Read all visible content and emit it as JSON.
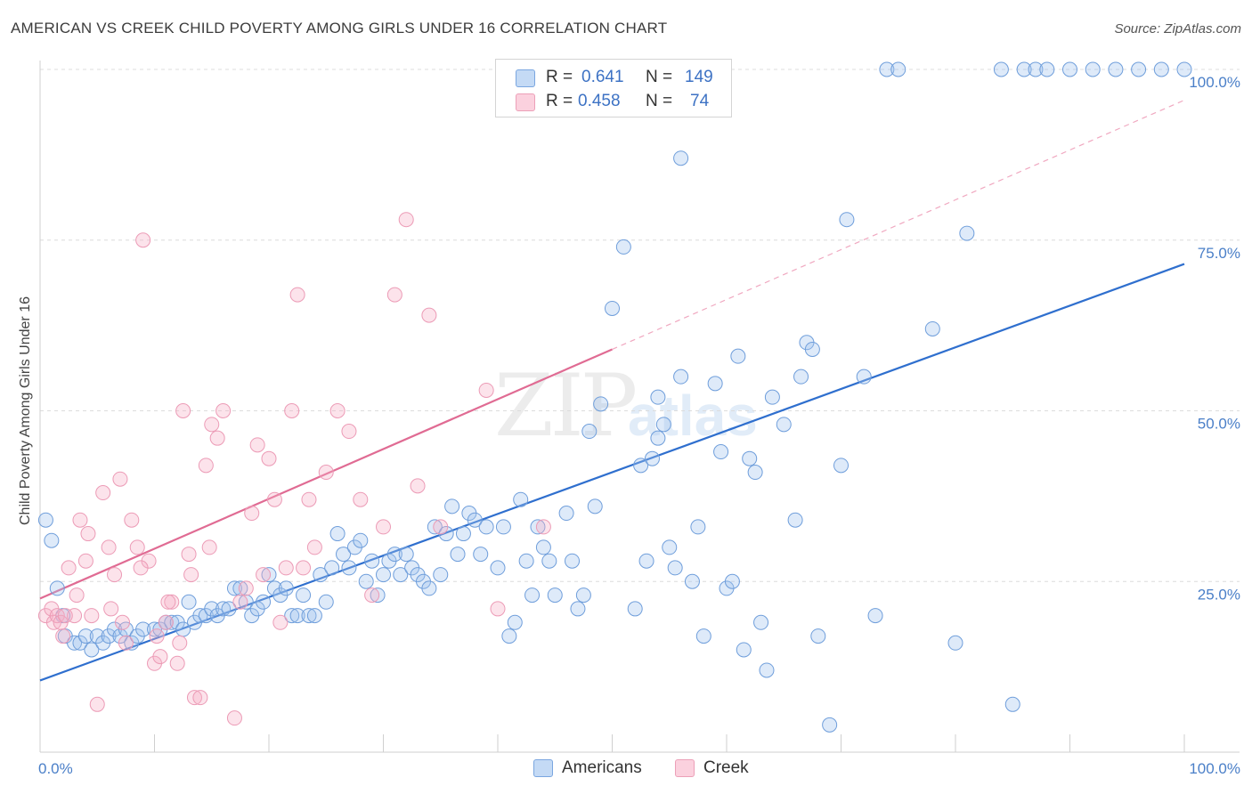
{
  "title": "AMERICAN VS CREEK CHILD POVERTY AMONG GIRLS UNDER 16 CORRELATION CHART",
  "source": "Source: ZipAtlas.com",
  "watermark": {
    "zip": "ZIP",
    "atlas": "atlas"
  },
  "legend": {
    "rows": [
      {
        "r_label": "R =",
        "r_value": "0.641",
        "n_label": "N =",
        "n_value": "149",
        "color": "#a9c8f0",
        "border": "#6b9bd8"
      },
      {
        "r_label": "R =",
        "r_value": "0.458",
        "n_label": "N =",
        "n_value": "74",
        "color": "#f7bfd0",
        "border": "#e68aa8"
      }
    ]
  },
  "bottom_legend": [
    {
      "label": "Americans",
      "color": "#a9c8f0",
      "border": "#6b9bd8"
    },
    {
      "label": "Creek",
      "color": "#f7bfd0",
      "border": "#e68aa8"
    }
  ],
  "chart_data": {
    "type": "scatter",
    "title": "AMERICAN VS CREEK CHILD POVERTY AMONG GIRLS UNDER 16 CORRELATION CHART",
    "xlabel": "",
    "ylabel": "Child Poverty Among Girls Under 16",
    "xlim": [
      0,
      100
    ],
    "ylim": [
      0,
      100
    ],
    "x_tick_labels": [
      "0.0%",
      "100.0%"
    ],
    "y_tick_labels": [
      "25.0%",
      "50.0%",
      "75.0%",
      "100.0%"
    ],
    "y_ticks": [
      25,
      50,
      75,
      100
    ],
    "legend_position": "top-center",
    "series": [
      {
        "name": "Americans",
        "color": "#7aa6e0",
        "trend": {
          "x0": 0,
          "y0": 10.5,
          "x1": 100,
          "y1": 71.5,
          "style": "solid",
          "color": "#2f6fce"
        },
        "points": [
          [
            0.5,
            34
          ],
          [
            1,
            31
          ],
          [
            1.5,
            24
          ],
          [
            2,
            20
          ],
          [
            2.2,
            17
          ],
          [
            3,
            16
          ],
          [
            3.5,
            16
          ],
          [
            4,
            17
          ],
          [
            4.5,
            15
          ],
          [
            5,
            17
          ],
          [
            5.5,
            16
          ],
          [
            6,
            17
          ],
          [
            6.5,
            18
          ],
          [
            7,
            17
          ],
          [
            7.5,
            18
          ],
          [
            8,
            16
          ],
          [
            8.5,
            17
          ],
          [
            9,
            18
          ],
          [
            10,
            18
          ],
          [
            10.5,
            18
          ],
          [
            11,
            19
          ],
          [
            11.5,
            19
          ],
          [
            12,
            19
          ],
          [
            12.5,
            18
          ],
          [
            13,
            22
          ],
          [
            13.5,
            19
          ],
          [
            14,
            20
          ],
          [
            14.5,
            20
          ],
          [
            15,
            21
          ],
          [
            15.5,
            20
          ],
          [
            16,
            21
          ],
          [
            16.5,
            21
          ],
          [
            17,
            24
          ],
          [
            17.5,
            24
          ],
          [
            18,
            22
          ],
          [
            18.5,
            20
          ],
          [
            19,
            21
          ],
          [
            19.5,
            22
          ],
          [
            20,
            26
          ],
          [
            20.5,
            24
          ],
          [
            21,
            23
          ],
          [
            21.5,
            24
          ],
          [
            22,
            20
          ],
          [
            22.5,
            20
          ],
          [
            23,
            23
          ],
          [
            23.5,
            20
          ],
          [
            24,
            20
          ],
          [
            24.5,
            26
          ],
          [
            25,
            22
          ],
          [
            25.5,
            27
          ],
          [
            26,
            32
          ],
          [
            26.5,
            29
          ],
          [
            27,
            27
          ],
          [
            27.5,
            30
          ],
          [
            28,
            31
          ],
          [
            28.5,
            25
          ],
          [
            29,
            28
          ],
          [
            29.5,
            23
          ],
          [
            30,
            26
          ],
          [
            30.5,
            28
          ],
          [
            31,
            29
          ],
          [
            31.5,
            26
          ],
          [
            32,
            29
          ],
          [
            32.5,
            27
          ],
          [
            33,
            26
          ],
          [
            33.5,
            25
          ],
          [
            34,
            24
          ],
          [
            34.5,
            33
          ],
          [
            35,
            26
          ],
          [
            35.5,
            32
          ],
          [
            36,
            36
          ],
          [
            36.5,
            29
          ],
          [
            37,
            32
          ],
          [
            37.5,
            35
          ],
          [
            38,
            34
          ],
          [
            38.5,
            29
          ],
          [
            39,
            33
          ],
          [
            40,
            27
          ],
          [
            40.5,
            33
          ],
          [
            41,
            17
          ],
          [
            41.5,
            19
          ],
          [
            42,
            37
          ],
          [
            42.5,
            28
          ],
          [
            43,
            23
          ],
          [
            43.5,
            33
          ],
          [
            44,
            30
          ],
          [
            44.5,
            28
          ],
          [
            45,
            23
          ],
          [
            46,
            35
          ],
          [
            46.5,
            28
          ],
          [
            47,
            21
          ],
          [
            47.5,
            23
          ],
          [
            48,
            47
          ],
          [
            48.5,
            36
          ],
          [
            49,
            51
          ],
          [
            50,
            65
          ],
          [
            51,
            74
          ],
          [
            52,
            21
          ],
          [
            52.5,
            42
          ],
          [
            53,
            28
          ],
          [
            53.5,
            43
          ],
          [
            54,
            46
          ],
          [
            54.5,
            48
          ],
          [
            55,
            30
          ],
          [
            55.5,
            27
          ],
          [
            56,
            55
          ],
          [
            57,
            25
          ],
          [
            57.5,
            33
          ],
          [
            58,
            17
          ],
          [
            59,
            54
          ],
          [
            59.5,
            44
          ],
          [
            60,
            24
          ],
          [
            60.5,
            25
          ],
          [
            61,
            58
          ],
          [
            61.5,
            15
          ],
          [
            62,
            43
          ],
          [
            62.5,
            41
          ],
          [
            63,
            19
          ],
          [
            63.5,
            12
          ],
          [
            64,
            52
          ],
          [
            65,
            48
          ],
          [
            66,
            34
          ],
          [
            66.5,
            55
          ],
          [
            67,
            60
          ],
          [
            67.5,
            59
          ],
          [
            68,
            17
          ],
          [
            69,
            4
          ],
          [
            70,
            42
          ],
          [
            70.5,
            78
          ],
          [
            72,
            55
          ],
          [
            73,
            20
          ],
          [
            74,
            100
          ],
          [
            75,
            100
          ],
          [
            78,
            62
          ],
          [
            80,
            16
          ],
          [
            81,
            76
          ],
          [
            84,
            100
          ],
          [
            85,
            7
          ],
          [
            86,
            100
          ],
          [
            87,
            100
          ],
          [
            88,
            100
          ],
          [
            90,
            100
          ],
          [
            92,
            100
          ],
          [
            94,
            100
          ],
          [
            96,
            100
          ],
          [
            98,
            100
          ],
          [
            100,
            100
          ],
          [
            54,
            52
          ],
          [
            56,
            87
          ]
        ]
      },
      {
        "name": "Creek",
        "color": "#f2a6bf",
        "trend": {
          "x0": 0,
          "y0": 22.5,
          "x1": 50,
          "y1": 59,
          "style": "solid",
          "color": "#e06b93"
        },
        "trend_extension": {
          "x0": 50,
          "y0": 59,
          "x1": 100,
          "y1": 95.5,
          "style": "dashed",
          "color": "#f0a8c0"
        },
        "points": [
          [
            0.5,
            20
          ],
          [
            1,
            21
          ],
          [
            1.2,
            19
          ],
          [
            1.5,
            20
          ],
          [
            2,
            17
          ],
          [
            2.5,
            27
          ],
          [
            3,
            20
          ],
          [
            3.5,
            34
          ],
          [
            4,
            28
          ],
          [
            4.5,
            20
          ],
          [
            5,
            7
          ],
          [
            5.5,
            38
          ],
          [
            6,
            30
          ],
          [
            6.5,
            26
          ],
          [
            7,
            40
          ],
          [
            7.5,
            16
          ],
          [
            8,
            34
          ],
          [
            8.5,
            30
          ],
          [
            9,
            75
          ],
          [
            9.5,
            28
          ],
          [
            10,
            13
          ],
          [
            10.5,
            14
          ],
          [
            11,
            19
          ],
          [
            11.5,
            22
          ],
          [
            12,
            13
          ],
          [
            12.5,
            50
          ],
          [
            13,
            29
          ],
          [
            13.5,
            8
          ],
          [
            14,
            8
          ],
          [
            14.5,
            42
          ],
          [
            15,
            48
          ],
          [
            15.5,
            46
          ],
          [
            16,
            50
          ],
          [
            17,
            5
          ],
          [
            17.5,
            22
          ],
          [
            18,
            24
          ],
          [
            18.5,
            35
          ],
          [
            19,
            45
          ],
          [
            19.5,
            26
          ],
          [
            20,
            43
          ],
          [
            20.5,
            37
          ],
          [
            21,
            19
          ],
          [
            21.5,
            27
          ],
          [
            22,
            50
          ],
          [
            22.5,
            67
          ],
          [
            23,
            27
          ],
          [
            23.5,
            37
          ],
          [
            24,
            30
          ],
          [
            25,
            41
          ],
          [
            26,
            50
          ],
          [
            27,
            47
          ],
          [
            28,
            37
          ],
          [
            29,
            23
          ],
          [
            30,
            33
          ],
          [
            31,
            67
          ],
          [
            32,
            78
          ],
          [
            33,
            39
          ],
          [
            34,
            64
          ],
          [
            35,
            33
          ],
          [
            39,
            53
          ],
          [
            40,
            21
          ],
          [
            44,
            33
          ],
          [
            1.8,
            19
          ],
          [
            2.2,
            20
          ],
          [
            3.2,
            23
          ],
          [
            4.2,
            32
          ],
          [
            6.2,
            21
          ],
          [
            7.2,
            19
          ],
          [
            8.8,
            27
          ],
          [
            10.2,
            17
          ],
          [
            11.2,
            22
          ],
          [
            12.2,
            16
          ],
          [
            13.2,
            26
          ],
          [
            14.8,
            30
          ]
        ]
      }
    ]
  }
}
